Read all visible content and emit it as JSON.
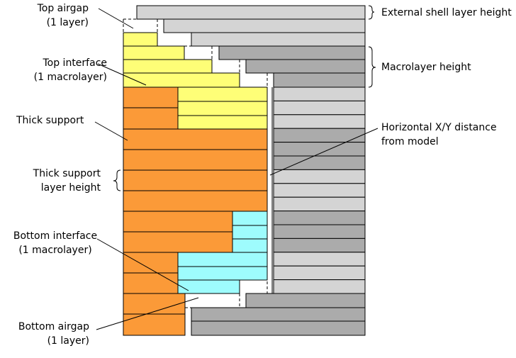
{
  "labels": {
    "top_airgap": [
      "Top airgap",
      "(1 layer)"
    ],
    "top_interface": [
      "Top interface",
      "(1 macrolayer)"
    ],
    "thick_support": [
      "Thick support"
    ],
    "thick_support_layer_height": [
      "Thick support",
      "layer height"
    ],
    "bottom_interface": [
      "Bottom interface",
      "(1 macrolayer)"
    ],
    "bottom_airgap": [
      "Bottom airgap",
      "(1 layer)"
    ],
    "external_shell_layer_height": [
      "External shell layer height"
    ],
    "macrolayer_height": [
      "Macrolayer height"
    ],
    "horizontal_xy_distance": [
      "Horizontal X/Y distance",
      "from model"
    ]
  },
  "colors": {
    "shell_light": "#d4d4d4",
    "shell_dark": "#ababab",
    "thick_support": "#fb9a38",
    "interface_yellow": "#fefe77",
    "interface_cyan": "#9efcfd",
    "outline": "#000000"
  }
}
